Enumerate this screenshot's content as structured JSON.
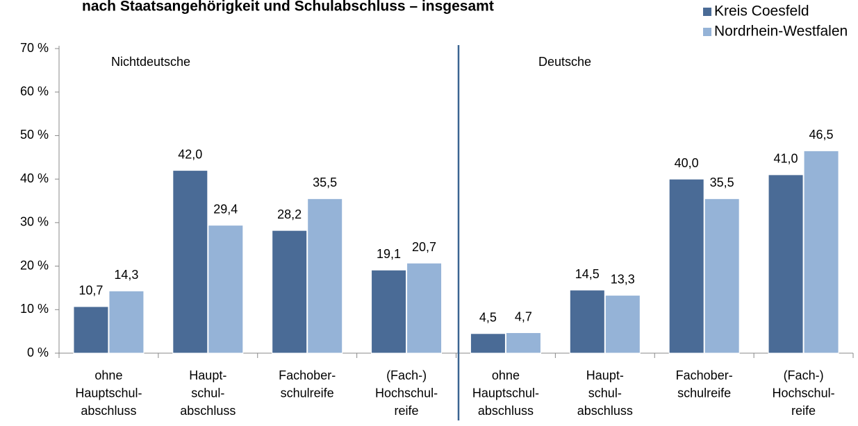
{
  "chart_data": {
    "type": "bar",
    "title": "nach Staatsangehörigkeit und Schulabschluss – insgesamt",
    "annotations": [
      "Nichtdeutsche",
      "Deutsche"
    ],
    "categories": [
      "ohne\nHauptschul-\nabschluss",
      "Haupt-\nschul-\nabschluss",
      "Fachober-\nschulreife",
      "(Fach-)\nHochschul-\nreife",
      "ohne\nHauptschul-\nabschluss",
      "Haupt-\nschul-\nabschluss",
      "Fachober-\nschulreife",
      "(Fach-)\nHochschul-\nreife"
    ],
    "series": [
      {
        "name": "Kreis Coesfeld",
        "color": "#4a6b96",
        "values": [
          10.7,
          42.0,
          28.2,
          19.1,
          4.5,
          14.5,
          40.0,
          41.0
        ],
        "value_labels": [
          "10,7",
          "42,0",
          "28,2",
          "19,1",
          "4,5",
          "14,5",
          "40,0",
          "41,0"
        ]
      },
      {
        "name": "Nordrhein-Westfalen",
        "color": "#95b3d7",
        "values": [
          14.3,
          29.4,
          35.5,
          20.7,
          4.7,
          13.3,
          35.5,
          46.5
        ],
        "value_labels": [
          "14,3",
          "29,4",
          "35,5",
          "20,7",
          "4,7",
          "13,3",
          "35,5",
          "46,5"
        ]
      }
    ],
    "ylim": [
      0,
      70
    ],
    "yticks": [
      {
        "value": 0,
        "label": "0 %"
      },
      {
        "value": 10,
        "label": "10 %"
      },
      {
        "value": 20,
        "label": "20 %"
      },
      {
        "value": 30,
        "label": "30 %"
      },
      {
        "value": 40,
        "label": "40 %"
      },
      {
        "value": 50,
        "label": "50 %"
      },
      {
        "value": 60,
        "label": "60 %"
      },
      {
        "value": 70,
        "label": "70 %"
      }
    ],
    "grid": false,
    "legend": "top-right"
  }
}
